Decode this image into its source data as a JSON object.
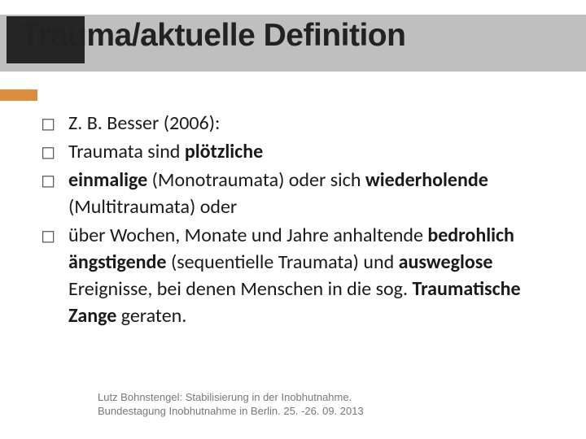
{
  "colors": {
    "title_band": "#bfbfbf",
    "title_dark": "#252525",
    "accent": "#d98f3e",
    "marker": "#595959",
    "text": "#1a1a1a",
    "footer": "#777777",
    "background": "#ffffff"
  },
  "title": "Trauma/aktuelle Definition",
  "bullets": {
    "marker": "◻",
    "items": [
      {
        "html": "Z. B. Besser (2006):"
      },
      {
        "html": "Traumata sind <b>plötzliche</b>"
      },
      {
        "html": "<b>einmalige</b> (Monotraumata) oder sich <b>wiederholende</b> (Multitraumata) oder"
      },
      {
        "html": "über Wochen, Monate und Jahre anhaltende <b>bedrohlich ängstigende</b> (sequentielle Traumata) und <b>ausweglose</b> Ereignisse, bei denen Menschen in die sog. <b>Traumatische Zange</b> geraten."
      }
    ]
  },
  "footer": {
    "line1": "Lutz Bohnstengel: Stabilisierung in der Inobhutnahme.",
    "line2": "Bundestagung Inobhutnahme in Berlin. 25. -26. 09. 2013"
  },
  "typography": {
    "title_fontsize": 39,
    "body_fontsize": 24,
    "body_lineheight": 33,
    "footer_fontsize": 13
  }
}
